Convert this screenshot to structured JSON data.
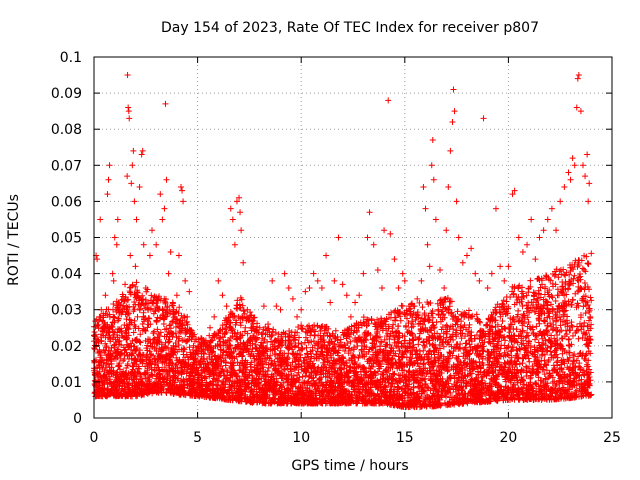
{
  "chart_data": {
    "type": "scatter",
    "title": "Day 154 of 2023, Rate Of TEC Index for receiver p807",
    "xlabel": "GPS time / hours",
    "ylabel": "ROTI / TECUs",
    "xlim": [
      0,
      25
    ],
    "ylim": [
      0,
      0.1
    ],
    "xticks": [
      0,
      5,
      10,
      15,
      20,
      25
    ],
    "yticks": [
      0,
      0.01,
      0.02,
      0.03,
      0.04,
      0.05,
      0.06,
      0.07,
      0.08,
      0.09,
      0.1
    ],
    "grid": true,
    "marker": "+",
    "marker_color": "#ff0000",
    "series": [
      {
        "points": [
          [
            0.05,
            0.012
          ],
          [
            0.1,
            0.045
          ],
          [
            0.15,
            0.044
          ],
          [
            0.2,
            0.018
          ],
          [
            0.25,
            0.009
          ],
          [
            0.3,
            0.055
          ],
          [
            0.35,
            0.03
          ],
          [
            0.4,
            0.016
          ],
          [
            0.45,
            0.025
          ],
          [
            0.5,
            0.013
          ],
          [
            0.55,
            0.034
          ],
          [
            0.6,
            0.011
          ],
          [
            0.65,
            0.062
          ],
          [
            0.7,
            0.066
          ],
          [
            0.75,
            0.07
          ],
          [
            0.8,
            0.022
          ],
          [
            0.85,
            0.015
          ],
          [
            0.9,
            0.04
          ],
          [
            0.95,
            0.038
          ],
          [
            1.0,
            0.05
          ],
          [
            1.05,
            0.012
          ],
          [
            1.1,
            0.048
          ],
          [
            1.15,
            0.055
          ],
          [
            1.2,
            0.03
          ],
          [
            1.3,
            0.018
          ],
          [
            1.4,
            0.01
          ],
          [
            1.5,
            0.037
          ],
          [
            1.6,
            0.067
          ],
          [
            1.62,
            0.095
          ],
          [
            1.65,
            0.086
          ],
          [
            1.68,
            0.085
          ],
          [
            1.7,
            0.083
          ],
          [
            1.75,
            0.045
          ],
          [
            1.8,
            0.065
          ],
          [
            1.85,
            0.07
          ],
          [
            1.9,
            0.074
          ],
          [
            1.95,
            0.06
          ],
          [
            2.0,
            0.042
          ],
          [
            2.05,
            0.055
          ],
          [
            2.1,
            0.028
          ],
          [
            2.2,
            0.064
          ],
          [
            2.3,
            0.073
          ],
          [
            2.35,
            0.074
          ],
          [
            2.4,
            0.048
          ],
          [
            2.5,
            0.036
          ],
          [
            2.6,
            0.03
          ],
          [
            2.7,
            0.045
          ],
          [
            2.8,
            0.052
          ],
          [
            2.9,
            0.024
          ],
          [
            3.0,
            0.048
          ],
          [
            3.1,
            0.03
          ],
          [
            3.2,
            0.062
          ],
          [
            3.3,
            0.055
          ],
          [
            3.4,
            0.058
          ],
          [
            3.45,
            0.087
          ],
          [
            3.5,
            0.066
          ],
          [
            3.6,
            0.04
          ],
          [
            3.7,
            0.046
          ],
          [
            3.8,
            0.032
          ],
          [
            3.9,
            0.028
          ],
          [
            4.0,
            0.034
          ],
          [
            4.1,
            0.045
          ],
          [
            4.2,
            0.064
          ],
          [
            4.25,
            0.063
          ],
          [
            4.3,
            0.06
          ],
          [
            4.4,
            0.038
          ],
          [
            4.5,
            0.028
          ],
          [
            4.6,
            0.035
          ],
          [
            4.8,
            0.02
          ],
          [
            5.0,
            0.018
          ],
          [
            5.2,
            0.022
          ],
          [
            5.4,
            0.02
          ],
          [
            5.6,
            0.025
          ],
          [
            5.8,
            0.028
          ],
          [
            6.0,
            0.038
          ],
          [
            6.2,
            0.034
          ],
          [
            6.4,
            0.031
          ],
          [
            6.6,
            0.058
          ],
          [
            6.7,
            0.055
          ],
          [
            6.8,
            0.048
          ],
          [
            6.9,
            0.06
          ],
          [
            7.0,
            0.061
          ],
          [
            7.05,
            0.057
          ],
          [
            7.1,
            0.052
          ],
          [
            7.2,
            0.043
          ],
          [
            7.4,
            0.03
          ],
          [
            7.6,
            0.025
          ],
          [
            7.8,
            0.022
          ],
          [
            8.0,
            0.025
          ],
          [
            8.2,
            0.031
          ],
          [
            8.4,
            0.026
          ],
          [
            8.6,
            0.038
          ],
          [
            8.8,
            0.031
          ],
          [
            9.0,
            0.03
          ],
          [
            9.2,
            0.04
          ],
          [
            9.4,
            0.036
          ],
          [
            9.6,
            0.033
          ],
          [
            9.8,
            0.028
          ],
          [
            10.0,
            0.03
          ],
          [
            10.2,
            0.035
          ],
          [
            10.4,
            0.036
          ],
          [
            10.6,
            0.04
          ],
          [
            10.8,
            0.038
          ],
          [
            11.0,
            0.036
          ],
          [
            11.2,
            0.045
          ],
          [
            11.4,
            0.032
          ],
          [
            11.6,
            0.038
          ],
          [
            11.8,
            0.05
          ],
          [
            12.0,
            0.037
          ],
          [
            12.2,
            0.034
          ],
          [
            12.4,
            0.028
          ],
          [
            12.6,
            0.032
          ],
          [
            12.8,
            0.034
          ],
          [
            13.0,
            0.04
          ],
          [
            13.2,
            0.05
          ],
          [
            13.3,
            0.057
          ],
          [
            13.5,
            0.048
          ],
          [
            13.7,
            0.041
          ],
          [
            13.9,
            0.036
          ],
          [
            14.0,
            0.052
          ],
          [
            14.2,
            0.088
          ],
          [
            14.3,
            0.051
          ],
          [
            14.5,
            0.044
          ],
          [
            14.7,
            0.036
          ],
          [
            14.9,
            0.04
          ],
          [
            15.0,
            0.038
          ],
          [
            15.2,
            0.031
          ],
          [
            15.4,
            0.026
          ],
          [
            15.6,
            0.033
          ],
          [
            15.8,
            0.038
          ],
          [
            15.9,
            0.064
          ],
          [
            16.0,
            0.058
          ],
          [
            16.1,
            0.048
          ],
          [
            16.2,
            0.042
          ],
          [
            16.3,
            0.07
          ],
          [
            16.35,
            0.077
          ],
          [
            16.4,
            0.066
          ],
          [
            16.5,
            0.055
          ],
          [
            16.7,
            0.041
          ],
          [
            16.9,
            0.036
          ],
          [
            17.0,
            0.052
          ],
          [
            17.1,
            0.064
          ],
          [
            17.2,
            0.074
          ],
          [
            17.3,
            0.082
          ],
          [
            17.35,
            0.091
          ],
          [
            17.4,
            0.085
          ],
          [
            17.5,
            0.06
          ],
          [
            17.6,
            0.05
          ],
          [
            17.8,
            0.043
          ],
          [
            18.0,
            0.045
          ],
          [
            18.2,
            0.047
          ],
          [
            18.4,
            0.04
          ],
          [
            18.6,
            0.038
          ],
          [
            18.8,
            0.083
          ],
          [
            19.0,
            0.036
          ],
          [
            19.2,
            0.04
          ],
          [
            19.4,
            0.058
          ],
          [
            19.6,
            0.042
          ],
          [
            19.8,
            0.038
          ],
          [
            20.0,
            0.042
          ],
          [
            20.2,
            0.062
          ],
          [
            20.3,
            0.063
          ],
          [
            20.5,
            0.05
          ],
          [
            20.7,
            0.046
          ],
          [
            20.9,
            0.048
          ],
          [
            21.1,
            0.055
          ],
          [
            21.3,
            0.044
          ],
          [
            21.5,
            0.05
          ],
          [
            21.7,
            0.052
          ],
          [
            21.9,
            0.055
          ],
          [
            22.1,
            0.058
          ],
          [
            22.3,
            0.052
          ],
          [
            22.5,
            0.06
          ],
          [
            22.7,
            0.064
          ],
          [
            22.9,
            0.068
          ],
          [
            23.0,
            0.066
          ],
          [
            23.1,
            0.072
          ],
          [
            23.2,
            0.07
          ],
          [
            23.3,
            0.086
          ],
          [
            23.35,
            0.094
          ],
          [
            23.4,
            0.095
          ],
          [
            23.5,
            0.085
          ],
          [
            23.6,
            0.07
          ],
          [
            23.7,
            0.067
          ],
          [
            23.8,
            0.073
          ],
          [
            23.85,
            0.06
          ],
          [
            23.9,
            0.065
          ],
          [
            23.95,
            0.028
          ]
        ],
        "band_lower": [
          [
            0,
            0.006
          ],
          [
            2,
            0.006
          ],
          [
            3,
            0.007
          ],
          [
            5,
            0.006
          ],
          [
            8,
            0.004
          ],
          [
            10,
            0.004
          ],
          [
            12,
            0.004
          ],
          [
            14,
            0.004
          ],
          [
            15,
            0.003
          ],
          [
            16,
            0.003
          ],
          [
            18,
            0.004
          ],
          [
            20,
            0.005
          ],
          [
            22,
            0.005
          ],
          [
            24,
            0.006
          ]
        ],
        "band_upper": [
          [
            0,
            0.028
          ],
          [
            1,
            0.032
          ],
          [
            2,
            0.038
          ],
          [
            3,
            0.034
          ],
          [
            4,
            0.032
          ],
          [
            5,
            0.022
          ],
          [
            6,
            0.024
          ],
          [
            7,
            0.034
          ],
          [
            8,
            0.026
          ],
          [
            9,
            0.024
          ],
          [
            10,
            0.026
          ],
          [
            11,
            0.026
          ],
          [
            12,
            0.024
          ],
          [
            13,
            0.028
          ],
          [
            14,
            0.028
          ],
          [
            15,
            0.032
          ],
          [
            16,
            0.032
          ],
          [
            17,
            0.034
          ],
          [
            18,
            0.03
          ],
          [
            19,
            0.028
          ],
          [
            20,
            0.036
          ],
          [
            21,
            0.038
          ],
          [
            22,
            0.04
          ],
          [
            23,
            0.044
          ],
          [
            24,
            0.046
          ]
        ]
      }
    ]
  }
}
